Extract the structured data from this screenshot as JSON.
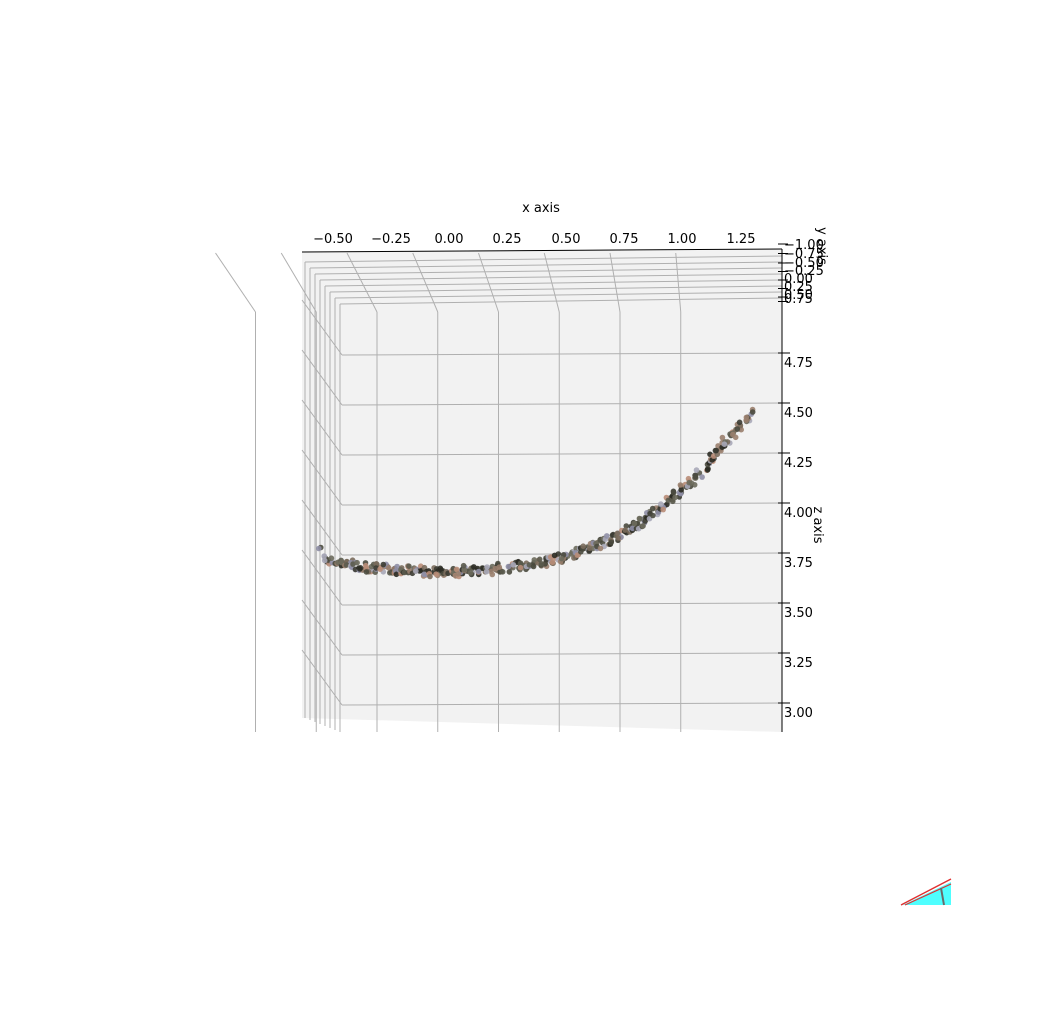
{
  "chart_data": {
    "type": "scatter",
    "projection": "3d",
    "xlabel": "x axis",
    "ylabel": "y axis",
    "zlabel": "z axis",
    "xlim": [
      -0.6,
      1.4
    ],
    "zlim": [
      2.9,
      5.0
    ],
    "x_ticks": [
      "−0.50",
      "−0.25",
      "0.00",
      "0.25",
      "0.50",
      "0.75",
      "1.00",
      "1.25"
    ],
    "y_ticks": [
      "−1.00",
      "−0.75",
      "−0.50",
      "−0.25",
      "0.00",
      "0.25",
      "0.50",
      "0.75"
    ],
    "z_ticks": [
      "4.75",
      "4.50",
      "4.25",
      "4.00",
      "3.75",
      "3.50",
      "3.25",
      "3.00"
    ],
    "grid": true,
    "series": [
      {
        "marker_colors": [
          "#2b2b24",
          "#4a4a3e",
          "#6b6a5c",
          "#9a7f6e",
          "#b98d78",
          "#8e8ea5",
          "#5a5a4c",
          "#3c3c33",
          "#7a6b5c",
          "#a8a8b8"
        ],
        "points": [
          {
            "x": -0.55,
            "z": 3.84
          },
          {
            "x": -0.52,
            "z": 3.78
          },
          {
            "x": -0.49,
            "z": 3.77
          },
          {
            "x": -0.46,
            "z": 3.77
          },
          {
            "x": -0.43,
            "z": 3.76
          },
          {
            "x": -0.4,
            "z": 3.75
          },
          {
            "x": -0.37,
            "z": 3.75
          },
          {
            "x": -0.34,
            "z": 3.74
          },
          {
            "x": -0.31,
            "z": 3.74
          },
          {
            "x": -0.28,
            "z": 3.74
          },
          {
            "x": -0.25,
            "z": 3.73
          },
          {
            "x": -0.22,
            "z": 3.73
          },
          {
            "x": -0.19,
            "z": 3.73
          },
          {
            "x": -0.16,
            "z": 3.73
          },
          {
            "x": -0.13,
            "z": 3.73
          },
          {
            "x": -0.1,
            "z": 3.72
          },
          {
            "x": -0.07,
            "z": 3.72
          },
          {
            "x": -0.04,
            "z": 3.72
          },
          {
            "x": -0.01,
            "z": 3.72
          },
          {
            "x": 0.02,
            "z": 3.72
          },
          {
            "x": 0.05,
            "z": 3.72
          },
          {
            "x": 0.08,
            "z": 3.73
          },
          {
            "x": 0.11,
            "z": 3.73
          },
          {
            "x": 0.14,
            "z": 3.73
          },
          {
            "x": 0.17,
            "z": 3.73
          },
          {
            "x": 0.2,
            "z": 3.74
          },
          {
            "x": 0.23,
            "z": 3.74
          },
          {
            "x": 0.26,
            "z": 3.74
          },
          {
            "x": 0.29,
            "z": 3.75
          },
          {
            "x": 0.32,
            "z": 3.75
          },
          {
            "x": 0.35,
            "z": 3.76
          },
          {
            "x": 0.38,
            "z": 3.77
          },
          {
            "x": 0.41,
            "z": 3.77
          },
          {
            "x": 0.44,
            "z": 3.78
          },
          {
            "x": 0.47,
            "z": 3.79
          },
          {
            "x": 0.5,
            "z": 3.8
          },
          {
            "x": 0.53,
            "z": 3.81
          },
          {
            "x": 0.56,
            "z": 3.82
          },
          {
            "x": 0.59,
            "z": 3.83
          },
          {
            "x": 0.62,
            "z": 3.85
          },
          {
            "x": 0.65,
            "z": 3.86
          },
          {
            "x": 0.68,
            "z": 3.88
          },
          {
            "x": 0.71,
            "z": 3.89
          },
          {
            "x": 0.74,
            "z": 3.91
          },
          {
            "x": 0.77,
            "z": 3.93
          },
          {
            "x": 0.8,
            "z": 3.95
          },
          {
            "x": 0.83,
            "z": 3.97
          },
          {
            "x": 0.86,
            "z": 4.0
          },
          {
            "x": 0.89,
            "z": 4.02
          },
          {
            "x": 0.92,
            "z": 4.05
          },
          {
            "x": 0.95,
            "z": 4.08
          },
          {
            "x": 0.98,
            "z": 4.11
          },
          {
            "x": 1.01,
            "z": 4.14
          },
          {
            "x": 1.04,
            "z": 4.17
          },
          {
            "x": 1.07,
            "z": 4.21
          },
          {
            "x": 1.1,
            "z": 4.25
          },
          {
            "x": 1.13,
            "z": 4.29
          },
          {
            "x": 1.16,
            "z": 4.33
          },
          {
            "x": 1.19,
            "z": 4.37
          },
          {
            "x": 1.22,
            "z": 4.41
          },
          {
            "x": 1.25,
            "z": 4.45
          },
          {
            "x": 1.28,
            "z": 4.49
          },
          {
            "x": 1.3,
            "z": 4.52
          }
        ]
      }
    ]
  },
  "inset": {
    "fill_color": "#4fffff",
    "edge_color": "#e03030"
  }
}
